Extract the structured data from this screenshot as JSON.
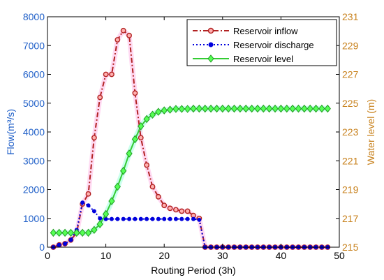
{
  "chart_data": {
    "type": "line",
    "xlabel": "Routing Period (3h)",
    "ylabel_left": "Flow(m³/s)",
    "ylabel_right": "Water level (m)",
    "xlim": [
      0,
      50
    ],
    "ylim_left": [
      0,
      8000
    ],
    "ylim_right": [
      215,
      231
    ],
    "x_ticks": [
      "0",
      "10",
      "20",
      "30",
      "40",
      "50"
    ],
    "y_left_ticks": [
      "0",
      "1000",
      "2000",
      "3000",
      "4000",
      "5000",
      "6000",
      "7000",
      "8000"
    ],
    "y_right_ticks": [
      "215",
      "217",
      "219",
      "221",
      "223",
      "225",
      "227",
      "229",
      "231"
    ],
    "grid": false,
    "legend_position": "top-right",
    "colors": {
      "left_axis": "#1f5fc8",
      "right_axis": "#c8821e",
      "inflow": "#b22222",
      "discharge": "#0000dd",
      "level": "#33cc33",
      "glow": "#ff66cc"
    },
    "x": [
      1,
      2,
      3,
      4,
      5,
      6,
      7,
      8,
      9,
      10,
      11,
      12,
      13,
      14,
      15,
      16,
      17,
      18,
      19,
      20,
      21,
      22,
      23,
      24,
      25,
      26,
      27,
      28,
      29,
      30,
      31,
      32,
      33,
      34,
      35,
      36,
      37,
      38,
      39,
      40,
      41,
      42,
      43,
      44,
      45,
      46,
      47,
      48
    ],
    "series": [
      {
        "name": "Reservoir inflow",
        "axis": "left",
        "values": [
          0,
          80,
          120,
          250,
          500,
          1500,
          1850,
          3800,
          5200,
          6000,
          6000,
          7200,
          7520,
          7350,
          5350,
          3800,
          2850,
          2100,
          1750,
          1450,
          1350,
          1300,
          1250,
          1250,
          1100,
          1000,
          0,
          0,
          0,
          0,
          0,
          0,
          0,
          0,
          0,
          0,
          0,
          0,
          0,
          0,
          0,
          0,
          0,
          0,
          0,
          0,
          0,
          0
        ]
      },
      {
        "name": "Reservoir discharge",
        "axis": "left",
        "values": [
          0,
          80,
          120,
          250,
          600,
          1550,
          1450,
          1250,
          1000,
          980,
          980,
          980,
          980,
          980,
          980,
          980,
          980,
          980,
          980,
          980,
          980,
          980,
          980,
          980,
          980,
          950,
          0,
          0,
          0,
          0,
          0,
          0,
          0,
          0,
          0,
          0,
          0,
          0,
          0,
          0,
          0,
          0,
          0,
          0,
          0,
          0,
          0,
          0
        ]
      },
      {
        "name": "Reservoir level",
        "axis": "right",
        "values": [
          216.0,
          216.0,
          216.0,
          216.0,
          216.0,
          216.0,
          216.0,
          216.2,
          216.6,
          217.3,
          218.2,
          219.2,
          220.3,
          221.5,
          222.5,
          223.4,
          223.9,
          224.2,
          224.4,
          224.5,
          224.55,
          224.6,
          224.6,
          224.6,
          224.62,
          224.62,
          224.62,
          224.62,
          224.62,
          224.62,
          224.62,
          224.62,
          224.62,
          224.62,
          224.62,
          224.62,
          224.62,
          224.62,
          224.62,
          224.62,
          224.62,
          224.62,
          224.62,
          224.62,
          224.62,
          224.62,
          224.62,
          224.62
        ]
      }
    ]
  }
}
